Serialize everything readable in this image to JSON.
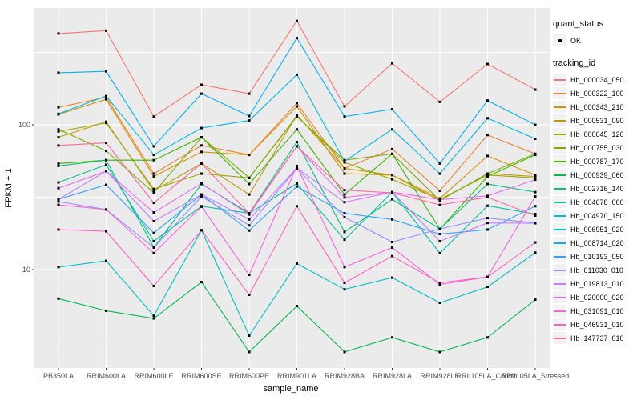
{
  "ui": {
    "legend": {
      "quant_status_title": "quant_status",
      "quant_status_ok_label": "OK",
      "tracking_id_title": "tracking_id"
    }
  },
  "chart_data": {
    "type": "line",
    "title": "",
    "xlabel": "sample_name",
    "ylabel": "FPKM + 1",
    "y_scale": "log10",
    "y_tick_labels": [
      "100",
      "10"
    ],
    "y_tick_values": [
      100,
      10
    ],
    "ylim": [
      2.2,
      650
    ],
    "grid": "white major and minor gridlines on grey panel",
    "legend_position": "right",
    "point_marker": "small black square (quant_status OK)",
    "panel_color": "#EBEBEB",
    "categories": [
      "PB350LA",
      "RRIM600LA",
      "RRIM600LE",
      "RRIM600SE",
      "RRIM600PE",
      "RRIM901LA",
      "RRIM928BA",
      "RRIM928LA",
      "RRIM928LE",
      "RRII105LA_Control",
      "RRII105LA_Stressed"
    ],
    "series": [
      {
        "name": "Hb_000034_050",
        "color": "#F8766D",
        "values": [
          427,
          447,
          114,
          189,
          164,
          522,
          134,
          266,
          144,
          263,
          175
        ]
      },
      {
        "name": "Hb_000322_100",
        "color": "#EA8331",
        "values": [
          132,
          155,
          46,
          72,
          62,
          141,
          50,
          68,
          35,
          85,
          63
        ]
      },
      {
        "name": "Hb_000343_210",
        "color": "#D89000",
        "values": [
          118,
          150,
          44,
          65,
          62,
          134,
          46,
          45,
          31,
          61,
          45
        ]
      },
      {
        "name": "Hb_000531_090",
        "color": "#C09B00",
        "values": [
          82,
          105,
          35,
          54,
          33,
          117,
          50,
          45,
          30,
          46,
          44
        ]
      },
      {
        "name": "Hb_000645_120",
        "color": "#A3A500",
        "values": [
          90,
          103,
          36,
          46,
          43,
          115,
          55,
          42,
          30.5,
          45,
          43
        ]
      },
      {
        "name": "Hb_000755_030",
        "color": "#7CAE00",
        "values": [
          93,
          66,
          34,
          82,
          43,
          114,
          57,
          63,
          30,
          46,
          63
        ]
      },
      {
        "name": "Hb_000787_170",
        "color": "#39B600",
        "values": [
          54,
          57,
          57,
          82,
          39,
          93,
          33,
          63,
          19,
          44,
          62
        ]
      },
      {
        "name": "Hb_000939_060",
        "color": "#00BB4E",
        "values": [
          6.3,
          5.2,
          4.6,
          8.2,
          2.7,
          5.6,
          2.7,
          3.4,
          2.7,
          3.4,
          6.2
        ]
      },
      {
        "name": "Hb_002716_140",
        "color": "#00BF7D",
        "values": [
          52,
          57,
          14.2,
          39,
          24.5,
          76,
          18.2,
          30.6,
          19.1,
          39,
          34.3
        ]
      },
      {
        "name": "Hb_004678_060",
        "color": "#00C1A3",
        "values": [
          40,
          53,
          15.7,
          27.4,
          24.5,
          39.3,
          16.1,
          34.3,
          13,
          27.6,
          24.2
        ]
      },
      {
        "name": "Hb_004970_150",
        "color": "#00BFC4",
        "values": [
          10.4,
          11.5,
          4.8,
          18.7,
          3.5,
          11,
          7.3,
          8.8,
          5.9,
          7.6,
          13.1
        ]
      },
      {
        "name": "Hb_006951_020",
        "color": "#00BAE0",
        "values": [
          119,
          158,
          62,
          95,
          107,
          222,
          56,
          93,
          46,
          111,
          80
        ]
      },
      {
        "name": "Hb_008714_020",
        "color": "#00B0F6",
        "values": [
          229,
          234,
          71,
          164,
          115,
          397,
          114,
          128,
          54,
          147,
          100
        ]
      },
      {
        "name": "Hb_010193_050",
        "color": "#35A2FF",
        "values": [
          30.6,
          38.5,
          17.9,
          33,
          18.6,
          37.5,
          24.5,
          22.2,
          17.6,
          18.9,
          27.4
        ]
      },
      {
        "name": "Hb_011030_010",
        "color": "#9590FF",
        "values": [
          29.5,
          26,
          14.2,
          32,
          20.2,
          50,
          23,
          15.5,
          19.1,
          22.7,
          21
        ]
      },
      {
        "name": "Hb_019813_010",
        "color": "#C77CFF",
        "values": [
          30.6,
          47.8,
          21.6,
          33,
          22.2,
          50.3,
          29.2,
          34.3,
          15.7,
          21,
          20.9
        ]
      },
      {
        "name": "Hb_020000_020",
        "color": "#E76BF3",
        "values": [
          36.5,
          47.8,
          24.8,
          39.3,
          24,
          71,
          31.5,
          34.3,
          30.4,
          32.3,
          41.8
        ]
      },
      {
        "name": "Hb_031091_010",
        "color": "#FA62DB",
        "values": [
          28,
          26,
          13,
          27.2,
          9.2,
          52,
          10.4,
          14.2,
          7.9,
          8.9,
          32
        ]
      },
      {
        "name": "Hb_046931_010",
        "color": "#FF61C3",
        "values": [
          18.9,
          18.4,
          7.7,
          18.7,
          6.7,
          27.4,
          8.1,
          12.4,
          8.1,
          8.9,
          15.4
        ]
      },
      {
        "name": "Hb_147737_010",
        "color": "#FF67A4",
        "values": [
          72,
          75,
          28.9,
          54,
          24.5,
          71,
          35.4,
          33.9,
          28,
          31.6,
          23.6
        ]
      }
    ]
  }
}
